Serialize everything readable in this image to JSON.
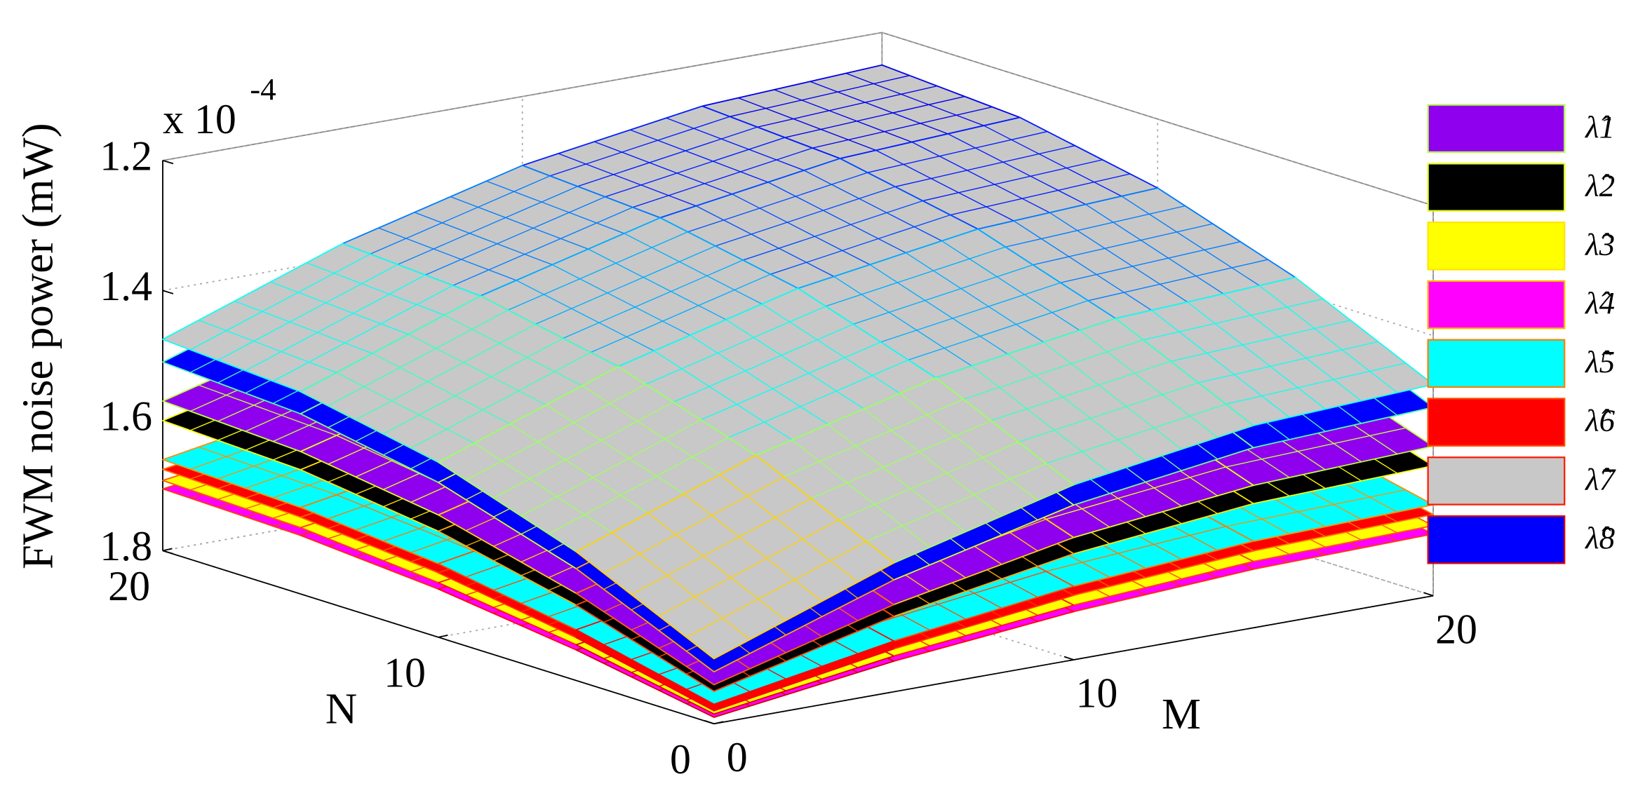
{
  "chart_data": {
    "type": "surface",
    "z_label": "FWM noise power (mW)",
    "z_multiplier": "x 10",
    "z_exponent": "-4",
    "x_label": "N",
    "y_label": "M",
    "xlim": [
      0,
      20
    ],
    "xticks": [
      0,
      10,
      20
    ],
    "ylim": [
      0,
      20
    ],
    "yticks": [
      0,
      10,
      20
    ],
    "zlim": [
      1.8,
      1.2
    ],
    "zticks": [
      1.2,
      1.4,
      1.6,
      1.8
    ],
    "grid": true,
    "legend_position": "right",
    "x": [
      0,
      5,
      10,
      15,
      20
    ],
    "y": [
      0,
      5,
      10,
      15,
      20
    ],
    "series": [
      {
        "name": "λ̂1",
        "color": "#8f00ef",
        "values": [
          [
            1.74,
            1.666,
            1.612,
            1.581,
            1.57
          ],
          [
            1.666,
            1.591,
            1.538,
            1.506,
            1.496
          ],
          [
            1.612,
            1.538,
            1.485,
            1.453,
            1.442
          ],
          [
            1.581,
            1.506,
            1.453,
            1.421,
            1.411
          ],
          [
            1.57,
            1.496,
            1.442,
            1.411,
            1.4
          ]
        ]
      },
      {
        "name": "λ̂2",
        "color": "#000000",
        "values": [
          [
            1.75,
            1.684,
            1.637,
            1.609,
            1.6
          ],
          [
            1.684,
            1.619,
            1.572,
            1.544,
            1.534
          ],
          [
            1.637,
            1.572,
            1.525,
            1.497,
            1.487
          ],
          [
            1.609,
            1.544,
            1.497,
            1.469,
            1.459
          ],
          [
            1.6,
            1.534,
            1.487,
            1.459,
            1.45
          ]
        ]
      },
      {
        "name": "λ̂3",
        "color": "#ffff00",
        "values": [
          [
            1.785,
            1.745,
            1.716,
            1.698,
            1.692
          ],
          [
            1.745,
            1.704,
            1.675,
            1.658,
            1.652
          ],
          [
            1.716,
            1.675,
            1.646,
            1.629,
            1.623
          ],
          [
            1.698,
            1.658,
            1.629,
            1.612,
            1.606
          ],
          [
            1.692,
            1.652,
            1.623,
            1.606,
            1.6
          ]
        ]
      },
      {
        "name": "λ̂4",
        "color": "#ff00ff",
        "values": [
          [
            1.79,
            1.753,
            1.726,
            1.71,
            1.705
          ],
          [
            1.753,
            1.716,
            1.689,
            1.673,
            1.668
          ],
          [
            1.726,
            1.689,
            1.662,
            1.647,
            1.641
          ],
          [
            1.71,
            1.673,
            1.647,
            1.631,
            1.625
          ],
          [
            1.705,
            1.668,
            1.641,
            1.625,
            1.62
          ]
        ]
      },
      {
        "name": "λ̂5",
        "color": "#00ffff",
        "values": [
          [
            1.77,
            1.722,
            1.687,
            1.667,
            1.66
          ],
          [
            1.722,
            1.674,
            1.639,
            1.619,
            1.612
          ],
          [
            1.687,
            1.639,
            1.605,
            1.584,
            1.577
          ],
          [
            1.667,
            1.619,
            1.584,
            1.564,
            1.557
          ],
          [
            1.66,
            1.612,
            1.577,
            1.557,
            1.55
          ]
        ]
      },
      {
        "name": "λ̂6",
        "color": "#ff0000",
        "values": [
          [
            1.78,
            1.734,
            1.701,
            1.682,
            1.675
          ],
          [
            1.734,
            1.688,
            1.655,
            1.636,
            1.629
          ],
          [
            1.701,
            1.655,
            1.622,
            1.603,
            1.596
          ],
          [
            1.682,
            1.636,
            1.603,
            1.583,
            1.577
          ],
          [
            1.675,
            1.629,
            1.596,
            1.577,
            1.57
          ]
        ]
      },
      {
        "name": "λ̂7",
        "color": "#c8c8c8",
        "values": [
          [
            1.7,
            1.602,
            1.531,
            1.489,
            1.475
          ],
          [
            1.602,
            1.503,
            1.433,
            1.391,
            1.377
          ],
          [
            1.531,
            1.433,
            1.362,
            1.32,
            1.306
          ],
          [
            1.489,
            1.391,
            1.32,
            1.278,
            1.264
          ],
          [
            1.475,
            1.377,
            1.306,
            1.264,
            1.25
          ]
        ]
      },
      {
        "name": "λ̂8",
        "color": "#0000ff",
        "values": [
          [
            1.72,
            1.628,
            1.562,
            1.523,
            1.51
          ],
          [
            1.628,
            1.536,
            1.471,
            1.431,
            1.418
          ],
          [
            1.562,
            1.471,
            1.405,
            1.366,
            1.352
          ],
          [
            1.523,
            1.431,
            1.366,
            1.326,
            1.313
          ],
          [
            1.51,
            1.418,
            1.352,
            1.313,
            1.3
          ]
        ]
      }
    ]
  }
}
